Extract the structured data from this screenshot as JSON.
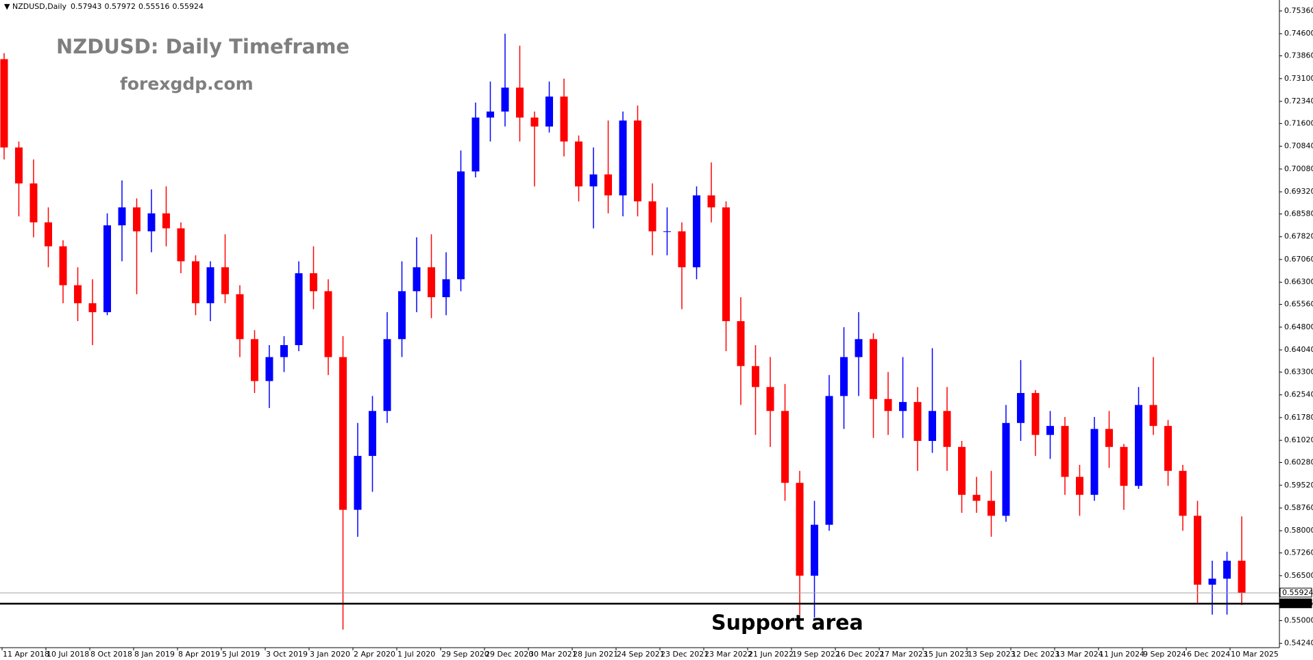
{
  "chart_data": {
    "type": "candlestick",
    "symbol": "NZDUSD,Daily",
    "header_ohlc": [
      0.57943,
      0.57972,
      0.55516,
      0.55924
    ],
    "title": "NZDUSD:  Daily Timeframe",
    "subtitle": "forexgdp.com",
    "annotation": "Support area",
    "up_color": "#0000ff",
    "down_color": "#ff0000",
    "open": [
      0.7375,
      0.708,
      0.696,
      0.683,
      0.675,
      0.662,
      0.656,
      0.653,
      0.682,
      0.688,
      0.68,
      0.686,
      0.681,
      0.67,
      0.656,
      0.668,
      0.659,
      0.644,
      0.63,
      0.638,
      0.642,
      0.666,
      0.66,
      0.638,
      0.587,
      0.605,
      0.62,
      0.644,
      0.66,
      0.668,
      0.658,
      0.664,
      0.7,
      0.718,
      0.72,
      0.728,
      0.718,
      0.715,
      0.725,
      0.71,
      0.695,
      0.699,
      0.692,
      0.717,
      0.69,
      0.68,
      0.68,
      0.668,
      0.692,
      0.688,
      0.65,
      0.635,
      0.628,
      0.62,
      0.596,
      0.565,
      0.582,
      0.625,
      0.638,
      0.644,
      0.624,
      0.62,
      0.623,
      0.61,
      0.62,
      0.608,
      0.592,
      0.59,
      0.585,
      0.616,
      0.626,
      0.612,
      0.615,
      0.598,
      0.592,
      0.614,
      0.608,
      0.595,
      0.622,
      0.615,
      0.6,
      0.585,
      0.562,
      0.564,
      0.57
    ],
    "high": [
      0.7395,
      0.71,
      0.704,
      0.688,
      0.677,
      0.668,
      0.664,
      0.686,
      0.697,
      0.691,
      0.694,
      0.695,
      0.683,
      0.672,
      0.67,
      0.679,
      0.662,
      0.647,
      0.642,
      0.645,
      0.67,
      0.675,
      0.664,
      0.645,
      0.616,
      0.625,
      0.653,
      0.67,
      0.678,
      0.679,
      0.673,
      0.707,
      0.723,
      0.73,
      0.746,
      0.742,
      0.72,
      0.73,
      0.731,
      0.712,
      0.708,
      0.717,
      0.72,
      0.722,
      0.696,
      0.688,
      0.683,
      0.695,
      0.703,
      0.69,
      0.658,
      0.642,
      0.638,
      0.629,
      0.6,
      0.59,
      0.632,
      0.648,
      0.653,
      0.646,
      0.633,
      0.638,
      0.628,
      0.641,
      0.628,
      0.61,
      0.598,
      0.6,
      0.622,
      0.637,
      0.627,
      0.62,
      0.618,
      0.602,
      0.618,
      0.62,
      0.609,
      0.628,
      0.638,
      0.617,
      0.602,
      0.59,
      0.57,
      0.573,
      0.5848
    ],
    "low": [
      0.704,
      0.685,
      0.678,
      0.668,
      0.656,
      0.65,
      0.642,
      0.652,
      0.67,
      0.659,
      0.673,
      0.675,
      0.666,
      0.652,
      0.65,
      0.656,
      0.638,
      0.626,
      0.621,
      0.633,
      0.64,
      0.654,
      0.632,
      0.547,
      0.578,
      0.593,
      0.616,
      0.638,
      0.653,
      0.651,
      0.652,
      0.66,
      0.698,
      0.71,
      0.715,
      0.71,
      0.695,
      0.713,
      0.705,
      0.69,
      0.681,
      0.686,
      0.685,
      0.685,
      0.672,
      0.672,
      0.654,
      0.664,
      0.683,
      0.64,
      0.622,
      0.612,
      0.608,
      0.59,
      0.552,
      0.551,
      0.58,
      0.614,
      0.625,
      0.611,
      0.612,
      0.611,
      0.6,
      0.606,
      0.6,
      0.586,
      0.586,
      0.578,
      0.583,
      0.61,
      0.605,
      0.604,
      0.592,
      0.585,
      0.59,
      0.601,
      0.587,
      0.594,
      0.612,
      0.595,
      0.58,
      0.556,
      0.552,
      0.552,
      0.5552
    ],
    "close": [
      0.708,
      0.696,
      0.683,
      0.675,
      0.662,
      0.656,
      0.653,
      0.682,
      0.688,
      0.68,
      0.686,
      0.681,
      0.67,
      0.656,
      0.668,
      0.659,
      0.644,
      0.63,
      0.638,
      0.642,
      0.666,
      0.66,
      0.638,
      0.587,
      0.605,
      0.62,
      0.644,
      0.66,
      0.668,
      0.658,
      0.664,
      0.7,
      0.718,
      0.72,
      0.728,
      0.718,
      0.715,
      0.725,
      0.71,
      0.695,
      0.699,
      0.692,
      0.717,
      0.69,
      0.68,
      0.68,
      0.668,
      0.692,
      0.688,
      0.65,
      0.635,
      0.628,
      0.62,
      0.596,
      0.565,
      0.582,
      0.625,
      0.638,
      0.644,
      0.624,
      0.62,
      0.623,
      0.61,
      0.62,
      0.608,
      0.592,
      0.59,
      0.585,
      0.616,
      0.626,
      0.612,
      0.615,
      0.598,
      0.592,
      0.614,
      0.608,
      0.595,
      0.622,
      0.615,
      0.6,
      0.585,
      0.562,
      0.564,
      0.57,
      0.5592
    ],
    "levels": [
      {
        "value": 0.55924,
        "color": "#a0a0a0"
      },
      {
        "value": 0.55565,
        "color": "#000000"
      }
    ],
    "ylim": [
      0.5413,
      0.7567
    ],
    "yticks": [
      {
        "value": 0.7536,
        "label": "0.75360"
      },
      {
        "value": 0.746,
        "label": "0.74600"
      },
      {
        "value": 0.7386,
        "label": "0.73860"
      },
      {
        "value": 0.731,
        "label": "0.73100"
      },
      {
        "value": 0.7234,
        "label": "0.72340"
      },
      {
        "value": 0.716,
        "label": "0.71600"
      },
      {
        "value": 0.7084,
        "label": "0.70840"
      },
      {
        "value": 0.7008,
        "label": "0.70080"
      },
      {
        "value": 0.6932,
        "label": "0.69320"
      },
      {
        "value": 0.6858,
        "label": "0.68580"
      },
      {
        "value": 0.6782,
        "label": "0.67820"
      },
      {
        "value": 0.6706,
        "label": "0.67060"
      },
      {
        "value": 0.663,
        "label": "0.66300"
      },
      {
        "value": 0.6556,
        "label": "0.65560"
      },
      {
        "value": 0.648,
        "label": "0.64800"
      },
      {
        "value": 0.6404,
        "label": "0.64040"
      },
      {
        "value": 0.633,
        "label": "0.63300"
      },
      {
        "value": 0.6254,
        "label": "0.62540"
      },
      {
        "value": 0.6178,
        "label": "0.61780"
      },
      {
        "value": 0.6102,
        "label": "0.61020"
      },
      {
        "value": 0.6028,
        "label": "0.60280"
      },
      {
        "value": 0.5952,
        "label": "0.59520"
      },
      {
        "value": 0.5876,
        "label": "0.58760"
      },
      {
        "value": 0.58,
        "label": "0.58000"
      },
      {
        "value": 0.5726,
        "label": "0.57260"
      },
      {
        "value": 0.565,
        "label": "0.56500"
      },
      {
        "value": 0.55,
        "label": "0.55000"
      },
      {
        "value": 0.5424,
        "label": "0.54240"
      }
    ],
    "date_labels": [
      "11 Apr 2018",
      "10 Jul 2018",
      "8 Oct 2018",
      "8 Jan 2019",
      "8 Apr 2019",
      "5 Jul 2019",
      "3 Oct 2019",
      "3 Jan 2020",
      "2 Apr 2020",
      "1 Jul 2020",
      "29 Sep 2020",
      "29 Dec 2020",
      "30 Mar 2021",
      "28 Jun 2021",
      "24 Sep 2021",
      "23 Dec 2021",
      "23 Mar 2022",
      "21 Jun 2022",
      "19 Sep 2022",
      "16 Dec 2022",
      "17 Mar 2023",
      "15 Jun 2023",
      "13 Sep 2023",
      "12 Dec 2023",
      "13 Mar 2024",
      "11 Jun 2024",
      "9 Sep 2024",
      "6 Dec 2024",
      "10 Mar 2025"
    ]
  }
}
